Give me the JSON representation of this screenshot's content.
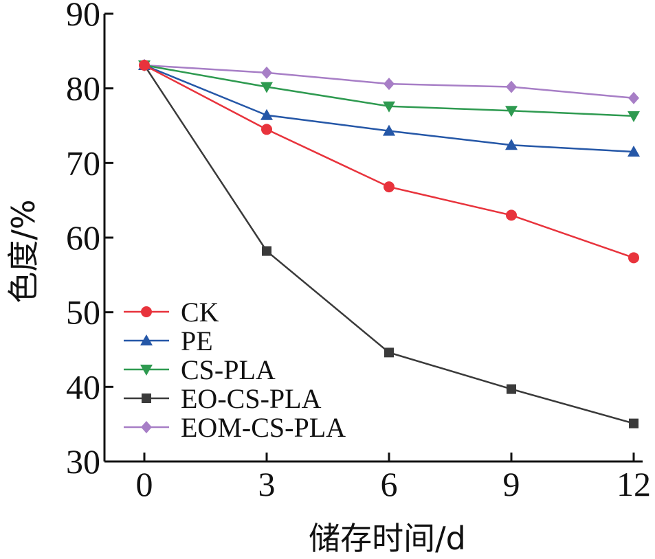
{
  "chart_data": {
    "type": "line",
    "xlabel": "储存时间/d",
    "ylabel": "色度/%",
    "x": [
      0,
      3,
      6,
      9,
      12
    ],
    "xlim": [
      -1,
      12
    ],
    "ylim": [
      30,
      90
    ],
    "xticks": [
      0,
      3,
      6,
      9,
      12
    ],
    "yticks": [
      30,
      40,
      50,
      60,
      70,
      80,
      90
    ],
    "grid": false,
    "legend_position": "bottom-left",
    "series": [
      {
        "name": "CK",
        "color": "#e8333c",
        "marker": "circle",
        "values": [
          83.1,
          74.5,
          66.8,
          63.0,
          57.3
        ]
      },
      {
        "name": "PE",
        "color": "#2557a7",
        "marker": "triangle-up",
        "values": [
          83.1,
          76.4,
          74.3,
          72.4,
          71.5
        ]
      },
      {
        "name": "CS-PLA",
        "color": "#2e9a50",
        "marker": "triangle-down",
        "values": [
          83.1,
          80.2,
          77.6,
          77.0,
          76.3
        ]
      },
      {
        "name": "EO-CS-PLA",
        "color": "#3a3a3a",
        "marker": "square",
        "values": [
          83.1,
          58.2,
          44.6,
          39.7,
          35.1
        ]
      },
      {
        "name": "EOM-CS-PLA",
        "color": "#a77ec6",
        "marker": "diamond",
        "values": [
          83.1,
          82.1,
          80.6,
          80.2,
          78.7
        ]
      }
    ]
  }
}
